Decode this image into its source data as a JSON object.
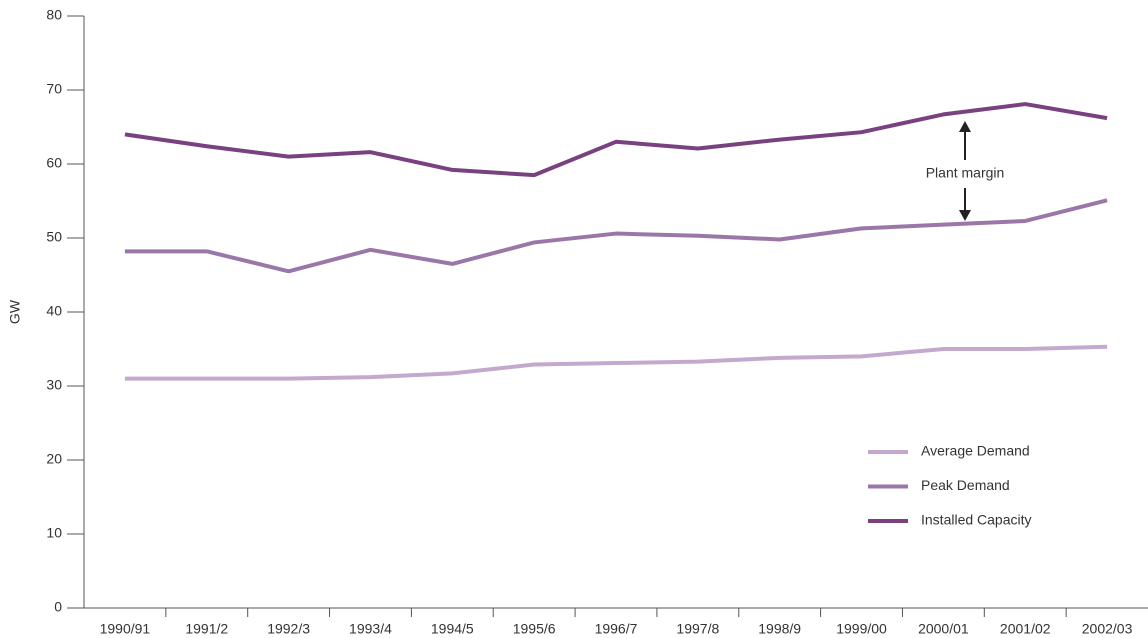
{
  "chart_data": {
    "type": "line",
    "y_label": "GW",
    "categories": [
      "1990/91",
      "1991/2",
      "1992/3",
      "1993/4",
      "1994/5",
      "1995/6",
      "1996/7",
      "1997/8",
      "1998/9",
      "1999/00",
      "2000/01",
      "2001/02",
      "2002/03"
    ],
    "series": [
      {
        "name": "Average Demand",
        "color": "#c4a8cd",
        "values": [
          31,
          31,
          31,
          31.2,
          31.7,
          32.9,
          33.1,
          33.3,
          33.8,
          34,
          35,
          35,
          35.3
        ]
      },
      {
        "name": "Peak Demand",
        "color": "#9a77a8",
        "values": [
          48.2,
          48.2,
          45.5,
          48.4,
          46.5,
          49.4,
          50.6,
          50.3,
          49.8,
          51.3,
          51.8,
          52.3,
          55.1
        ]
      },
      {
        "name": "Installed Capacity",
        "color": "#7a4181",
        "values": [
          64,
          62.4,
          61,
          61.6,
          59.2,
          58.5,
          63,
          62.1,
          63.3,
          64.3,
          66.7,
          68.1,
          66.2
        ]
      }
    ],
    "ylim": [
      0,
      80
    ],
    "yticks": [
      0,
      10,
      20,
      30,
      40,
      50,
      60,
      70,
      80
    ],
    "annotations": [
      {
        "text": "Plant margin"
      }
    ],
    "legend": "lower right"
  }
}
